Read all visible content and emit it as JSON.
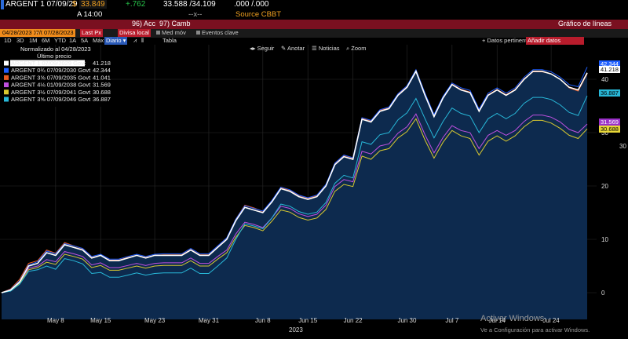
{
  "header": {
    "security": "ARGENT 1 07/09/29",
    "currency_sym": "$",
    "last_price": "33.849",
    "change": "+.762",
    "bid_ask": "33.588 /34.109",
    "yields": ".000 /.000",
    "time_label": "A 14:00",
    "dashes": "--x--",
    "source": "Source CBBT",
    "menu_acc": "96) Acc",
    "menu_camb": "97) Camb",
    "chart_title": "Gráfico de líneas"
  },
  "toolbar": {
    "ticker_field": "ARGENT 1 07/09/20",
    "date_from": "04/28/2023",
    "date_to": "07/28/2023",
    "last_px": "Last Px",
    "divisa": "Divisa local",
    "med_mov": "Med móv",
    "eventos": "Eventos clave",
    "periods": [
      "1D",
      "3D",
      "1M",
      "6M",
      "YTD",
      "1A",
      "5A",
      "Máx"
    ],
    "freq": "Diario",
    "tabla": "Tabla",
    "datos_pertinent": "Datos pertinent",
    "anadir_datos": "Añadir datos"
  },
  "chart_tools": [
    "Seguir",
    "Anotar",
    "Noticias",
    "Zoom"
  ],
  "legend": {
    "normalized": "Normalizado al 04/28/2023",
    "last_price_header": "Último precio"
  },
  "watermark": {
    "line1": "Activar Windows",
    "line2": "Ve a Configuración para activar Windows."
  },
  "colors": {
    "fill": "#0d2a4e",
    "bg": "#000000",
    "grid": "#2a2a2a"
  },
  "chart_data": {
    "type": "area",
    "x_dates": [
      "2023-04-28",
      "2023-05-01",
      "2023-05-02",
      "2023-05-03",
      "2023-05-04",
      "2023-05-05",
      "2023-05-08",
      "2023-05-09",
      "2023-05-10",
      "2023-05-11",
      "2023-05-12",
      "2023-05-15",
      "2023-05-16",
      "2023-05-17",
      "2023-05-18",
      "2023-05-19",
      "2023-05-22",
      "2023-05-23",
      "2023-05-24",
      "2023-05-25",
      "2023-05-26",
      "2023-05-29",
      "2023-05-30",
      "2023-05-31",
      "2023-06-01",
      "2023-06-02",
      "2023-06-05",
      "2023-06-06",
      "2023-06-07",
      "2023-06-08",
      "2023-06-09",
      "2023-06-12",
      "2023-06-13",
      "2023-06-14",
      "2023-06-15",
      "2023-06-16",
      "2023-06-19",
      "2023-06-20",
      "2023-06-21",
      "2023-06-22",
      "2023-06-23",
      "2023-06-26",
      "2023-06-27",
      "2023-06-28",
      "2023-06-29",
      "2023-06-30",
      "2023-07-03",
      "2023-07-04",
      "2023-07-05",
      "2023-07-06",
      "2023-07-07",
      "2023-07-10",
      "2023-07-11",
      "2023-07-12",
      "2023-07-13",
      "2023-07-14",
      "2023-07-17",
      "2023-07-18",
      "2023-07-19",
      "2023-07-20",
      "2023-07-21",
      "2023-07-24",
      "2023-07-25",
      "2023-07-26",
      "2023-07-27",
      "2023-07-28"
    ],
    "x_tick_labels": [
      "May 8",
      "May 15",
      "May 23",
      "May 31",
      "Jun 8",
      "Jun 15",
      "Jun 22",
      "Jun 30",
      "Jul 7",
      "Jul 14",
      "Jul 24"
    ],
    "x_tick_index": [
      6,
      11,
      17,
      23,
      29,
      34,
      39,
      45,
      50,
      55,
      61
    ],
    "xlabel": "2023",
    "ylim": [
      -5,
      45
    ],
    "y_ticks": [
      0,
      10,
      20,
      30,
      40
    ],
    "series": [
      {
        "name": "ARGENT 1 07/09/2029 Govt",
        "last": "41.218",
        "color": "#ffffff",
        "badge_bg": "#ffffff",
        "badge_fg": "#000000",
        "values": [
          0,
          0.5,
          2,
          5,
          5.5,
          7.5,
          7,
          9,
          8.5,
          8,
          6.5,
          7,
          6,
          6,
          6.5,
          7,
          6.5,
          7,
          7,
          7,
          7,
          8,
          7,
          7,
          8.5,
          10,
          13.5,
          16,
          15.5,
          15,
          17,
          19.5,
          19,
          18,
          17.5,
          18,
          20,
          24,
          25.5,
          25,
          32.5,
          32,
          34,
          34.5,
          37,
          38.5,
          41.5,
          37,
          33,
          36.5,
          39,
          38,
          37.5,
          34,
          37,
          38,
          37,
          38,
          40,
          41.5,
          41.5,
          41,
          40,
          38.5,
          38,
          41.2
        ]
      },
      {
        "name": "ARGENT 0¾ 07/09/2030 Govt",
        "last": "42.344",
        "color": "#1e5eff",
        "badge_bg": "#1e5eff",
        "badge_fg": "#ffffff",
        "values": [
          0,
          0.6,
          2.2,
          5.2,
          5.8,
          7.8,
          7.3,
          9.2,
          8.8,
          8.3,
          6.8,
          7.2,
          6.3,
          6.3,
          6.8,
          7.2,
          6.8,
          7.2,
          7.3,
          7.3,
          7.3,
          8.3,
          7.3,
          7.3,
          8.8,
          10.3,
          13.8,
          16.3,
          15.8,
          15.3,
          17.3,
          19.8,
          19.3,
          18.3,
          17.8,
          18.3,
          20.3,
          24.3,
          25.8,
          25.3,
          32.8,
          32.3,
          34.3,
          34.8,
          37.3,
          38.8,
          41.8,
          37.4,
          33.4,
          36.8,
          39.3,
          38.4,
          37.9,
          34.4,
          37.4,
          38.4,
          37.4,
          38.4,
          40.4,
          41.8,
          41.8,
          41.4,
          40.4,
          39,
          38.6,
          42.3
        ]
      },
      {
        "name": "ARGENT 3⅝ 07/09/2035 Govt",
        "last": "41.041",
        "color": "#e85a20",
        "badge_bg": "#e85a20",
        "badge_fg": "#ffffff",
        "values": [
          0,
          0.7,
          2.5,
          5.5,
          6,
          8,
          7.4,
          9.4,
          8.8,
          8.2,
          6.6,
          7,
          6.1,
          6.1,
          6.6,
          7,
          6.6,
          7,
          7.1,
          7.1,
          7.1,
          8.1,
          7.1,
          7.1,
          8.6,
          10.1,
          13.8,
          16.4,
          15.9,
          15.2,
          17.2,
          19.7,
          19.2,
          18.2,
          17.7,
          18.2,
          20.2,
          24.2,
          25.7,
          25.2,
          32.7,
          32.2,
          34.2,
          34.6,
          37.2,
          38.6,
          41.4,
          37.2,
          33.2,
          36.6,
          39.1,
          38.1,
          37.6,
          34.1,
          37.1,
          38.1,
          37.1,
          38.1,
          40.1,
          41.4,
          41.4,
          41,
          40,
          38.4,
          37.8,
          41.0
        ]
      },
      {
        "name": "ARGENT 4⅛ 01/09/2038 Govt",
        "last": "31.569",
        "color": "#c050e0",
        "badge_bg": "#9a30c8",
        "badge_fg": "#ffffff",
        "values": [
          0,
          0.5,
          2,
          4.6,
          5,
          6.2,
          5.8,
          7.7,
          7.3,
          6.8,
          5.2,
          5.6,
          4.7,
          4.7,
          5.1,
          5.5,
          5.1,
          5.5,
          5.6,
          5.6,
          5.6,
          6.5,
          5.5,
          5.5,
          6.8,
          8,
          11,
          13.2,
          12.8,
          12.2,
          14,
          16.2,
          15.8,
          14.8,
          14.3,
          14.7,
          16.4,
          19.9,
          21.2,
          20.8,
          26.5,
          26,
          27.5,
          27.9,
          29.9,
          31.1,
          33.5,
          29.6,
          26.2,
          29.1,
          31.3,
          30.4,
          30,
          27,
          29.5,
          30.4,
          29.5,
          30.4,
          32.1,
          33.3,
          33.3,
          32.9,
          32,
          30.6,
          30,
          31.6
        ]
      },
      {
        "name": "ARGENT 3½ 07/09/2041 Govt",
        "last": "30.688",
        "color": "#d8c830",
        "badge_bg": "#e8d838",
        "badge_fg": "#000000",
        "values": [
          0,
          0.4,
          1.8,
          4.3,
          4.7,
          5.7,
          5.3,
          7.2,
          6.8,
          6.3,
          4.7,
          5.1,
          4.2,
          4.2,
          4.6,
          5,
          4.6,
          5,
          5.1,
          5.1,
          5.1,
          6,
          5,
          5,
          6.3,
          7.5,
          10.4,
          12.6,
          12.2,
          11.6,
          13.4,
          15.5,
          15.1,
          14.1,
          13.6,
          14,
          15.6,
          19,
          20.3,
          19.9,
          25.6,
          25,
          26.6,
          27,
          29,
          30.2,
          32.6,
          28.6,
          25.2,
          28.2,
          30.4,
          29.4,
          28.9,
          25.8,
          28.4,
          29.4,
          28.4,
          29.4,
          31.1,
          32.3,
          32.3,
          31.8,
          30.8,
          29.5,
          28.9,
          30.7
        ]
      },
      {
        "name": "ARGENT 3⅝ 07/09/2046 Govt",
        "last": "36.887",
        "color": "#28b8d8",
        "badge_bg": "#28b8d8",
        "badge_fg": "#000000",
        "values": [
          0,
          0.3,
          1.6,
          4,
          4.3,
          5,
          4.4,
          6.4,
          6,
          5.4,
          3.6,
          3.8,
          2.9,
          2.9,
          3.3,
          3.7,
          3.3,
          3.6,
          3.7,
          3.7,
          3.7,
          4.6,
          3.6,
          3.6,
          5,
          6.5,
          10,
          12.9,
          12.5,
          12,
          14,
          16.6,
          16.2,
          15.2,
          14.7,
          15.1,
          16.9,
          20.5,
          22,
          21.5,
          28.3,
          27.8,
          29.6,
          30,
          32.4,
          33.7,
          36.4,
          32.6,
          29,
          32.1,
          34.6,
          33.6,
          33.1,
          30,
          32.6,
          33.6,
          32.6,
          33.6,
          35.5,
          36.6,
          36.6,
          36.2,
          35.2,
          33.8,
          33.2,
          36.9
        ]
      }
    ],
    "extra_axis_label": "30"
  }
}
